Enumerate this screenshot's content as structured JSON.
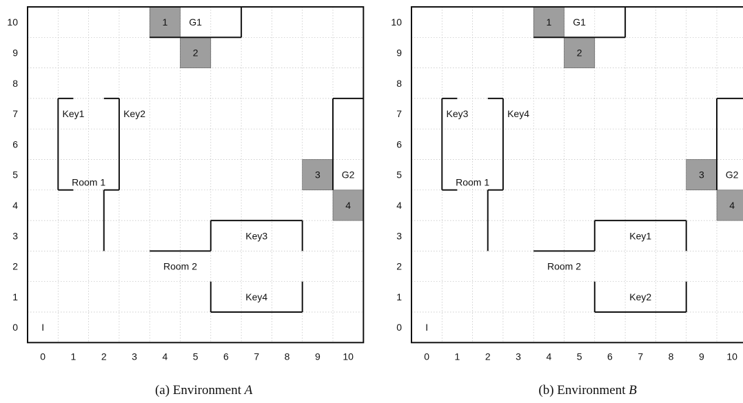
{
  "panels": [
    {
      "caption_prefix": "(a) Environment",
      "caption_var": "A",
      "x_ticks": [
        "0",
        "1",
        "2",
        "3",
        "4",
        "5",
        "6",
        "7",
        "8",
        "9",
        "10"
      ],
      "y_ticks": [
        "0",
        "1",
        "2",
        "3",
        "4",
        "5",
        "6",
        "7",
        "8",
        "9",
        "10"
      ],
      "labels": [
        {
          "text": "I",
          "col": 0,
          "row": 0
        },
        {
          "text": "Key1",
          "col": 1,
          "row": 7
        },
        {
          "text": "Key2",
          "col": 3,
          "row": 7
        },
        {
          "text": "Room 1",
          "col": 1.5,
          "row": 4.75
        },
        {
          "text": "Key3",
          "col": 7,
          "row": 3
        },
        {
          "text": "Room 2",
          "col": 4.5,
          "row": 2
        },
        {
          "text": "Key4",
          "col": 7,
          "row": 1
        },
        {
          "text": "G1",
          "col": 5,
          "row": 10
        },
        {
          "text": "G2",
          "col": 10,
          "row": 5
        }
      ],
      "shaded": [
        {
          "text": "1",
          "col": 4,
          "row": 10
        },
        {
          "text": "2",
          "col": 5,
          "row": 9
        },
        {
          "text": "3",
          "col": 9,
          "row": 5
        },
        {
          "text": "4",
          "col": 10,
          "row": 4
        }
      ]
    },
    {
      "caption_prefix": "(b) Environment",
      "caption_var": "B",
      "x_ticks": [
        "0",
        "1",
        "2",
        "3",
        "4",
        "5",
        "6",
        "7",
        "8",
        "9",
        "10"
      ],
      "y_ticks": [
        "0",
        "1",
        "2",
        "3",
        "4",
        "5",
        "6",
        "7",
        "8",
        "9",
        "10"
      ],
      "labels": [
        {
          "text": "I",
          "col": 0,
          "row": 0
        },
        {
          "text": "Key3",
          "col": 1,
          "row": 7
        },
        {
          "text": "Key4",
          "col": 3,
          "row": 7
        },
        {
          "text": "Room 1",
          "col": 1.5,
          "row": 4.75
        },
        {
          "text": "Key1",
          "col": 7,
          "row": 3
        },
        {
          "text": "Room 2",
          "col": 4.5,
          "row": 2
        },
        {
          "text": "Key2",
          "col": 7,
          "row": 1
        },
        {
          "text": "G1",
          "col": 5,
          "row": 10
        },
        {
          "text": "G2",
          "col": 10,
          "row": 5
        }
      ],
      "shaded": [
        {
          "text": "1",
          "col": 4,
          "row": 10
        },
        {
          "text": "2",
          "col": 5,
          "row": 9
        },
        {
          "text": "3",
          "col": 9,
          "row": 5
        },
        {
          "text": "4",
          "col": 10,
          "row": 4
        }
      ]
    }
  ]
}
